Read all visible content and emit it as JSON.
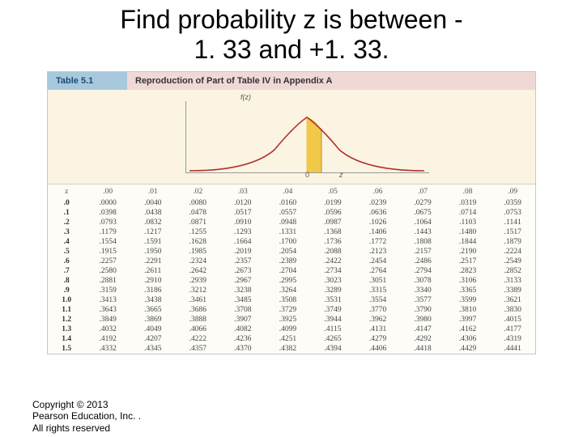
{
  "title_line1": "Find probability  z is between -",
  "title_line2": "1. 33 and +1. 33.",
  "table_name": "Table 5.1",
  "table_caption": "Reproduction of Part of Table IV in Appendix A",
  "curve": {
    "axis_label_y": "f(z)",
    "axis_label_x": "z",
    "zero": "0",
    "line_color": "#b03028",
    "fill_color": "#f2c84b",
    "bg_color": "#fbf4e3"
  },
  "z_header": "z",
  "col_headers": [
    ".00",
    ".01",
    ".02",
    ".03",
    ".04",
    ".05",
    ".06",
    ".07",
    ".08",
    ".09"
  ],
  "rows": [
    {
      "z": ".0",
      "v": [
        ".0000",
        ".0040",
        ".0080",
        ".0120",
        ".0160",
        ".0199",
        ".0239",
        ".0279",
        ".0319",
        ".0359"
      ]
    },
    {
      "z": ".1",
      "v": [
        ".0398",
        ".0438",
        ".0478",
        ".0517",
        ".0557",
        ".0596",
        ".0636",
        ".0675",
        ".0714",
        ".0753"
      ]
    },
    {
      "z": ".2",
      "v": [
        ".0793",
        ".0832",
        ".0871",
        ".0910",
        ".0948",
        ".0987",
        ".1026",
        ".1064",
        ".1103",
        ".1141"
      ]
    },
    {
      "z": ".3",
      "v": [
        ".1179",
        ".1217",
        ".1255",
        ".1293",
        ".1331",
        ".1368",
        ".1406",
        ".1443",
        ".1480",
        ".1517"
      ]
    },
    {
      "z": ".4",
      "v": [
        ".1554",
        ".1591",
        ".1628",
        ".1664",
        ".1700",
        ".1736",
        ".1772",
        ".1808",
        ".1844",
        ".1879"
      ]
    },
    {
      "z": ".5",
      "v": [
        ".1915",
        ".1950",
        ".1985",
        ".2019",
        ".2054",
        ".2088",
        ".2123",
        ".2157",
        ".2190",
        ".2224"
      ]
    },
    {
      "z": ".6",
      "v": [
        ".2257",
        ".2291",
        ".2324",
        ".2357",
        ".2389",
        ".2422",
        ".2454",
        ".2486",
        ".2517",
        ".2549"
      ]
    },
    {
      "z": ".7",
      "v": [
        ".2580",
        ".2611",
        ".2642",
        ".2673",
        ".2704",
        ".2734",
        ".2764",
        ".2794",
        ".2823",
        ".2852"
      ]
    },
    {
      "z": ".8",
      "v": [
        ".2881",
        ".2910",
        ".2939",
        ".2967",
        ".2995",
        ".3023",
        ".3051",
        ".3078",
        ".3106",
        ".3133"
      ]
    },
    {
      "z": ".9",
      "v": [
        ".3159",
        ".3186",
        ".3212",
        ".3238",
        ".3264",
        ".3289",
        ".3315",
        ".3340",
        ".3365",
        ".3389"
      ]
    },
    {
      "z": "1.0",
      "v": [
        ".3413",
        ".3438",
        ".3461",
        ".3485",
        ".3508",
        ".3531",
        ".3554",
        ".3577",
        ".3599",
        ".3621"
      ]
    },
    {
      "z": "1.1",
      "v": [
        ".3643",
        ".3665",
        ".3686",
        ".3708",
        ".3729",
        ".3749",
        ".3770",
        ".3790",
        ".3810",
        ".3830"
      ]
    },
    {
      "z": "1.2",
      "v": [
        ".3849",
        ".3869",
        ".3888",
        ".3907",
        ".3925",
        ".3944",
        ".3962",
        ".3980",
        ".3997",
        ".4015"
      ]
    },
    {
      "z": "1.3",
      "v": [
        ".4032",
        ".4049",
        ".4066",
        ".4082",
        ".4099",
        ".4115",
        ".4131",
        ".4147",
        ".4162",
        ".4177"
      ]
    },
    {
      "z": "1.4",
      "v": [
        ".4192",
        ".4207",
        ".4222",
        ".4236",
        ".4251",
        ".4265",
        ".4279",
        ".4292",
        ".4306",
        ".4319"
      ]
    },
    {
      "z": "1.5",
      "v": [
        ".4332",
        ".4345",
        ".4357",
        ".4370",
        ".4382",
        ".4394",
        ".4406",
        ".4418",
        ".4429",
        ".4441"
      ]
    }
  ],
  "copyright_line1": "Copyright © 2013",
  "copyright_line2": "Pearson Education, Inc. .",
  "copyright_line3": "All rights reserved"
}
